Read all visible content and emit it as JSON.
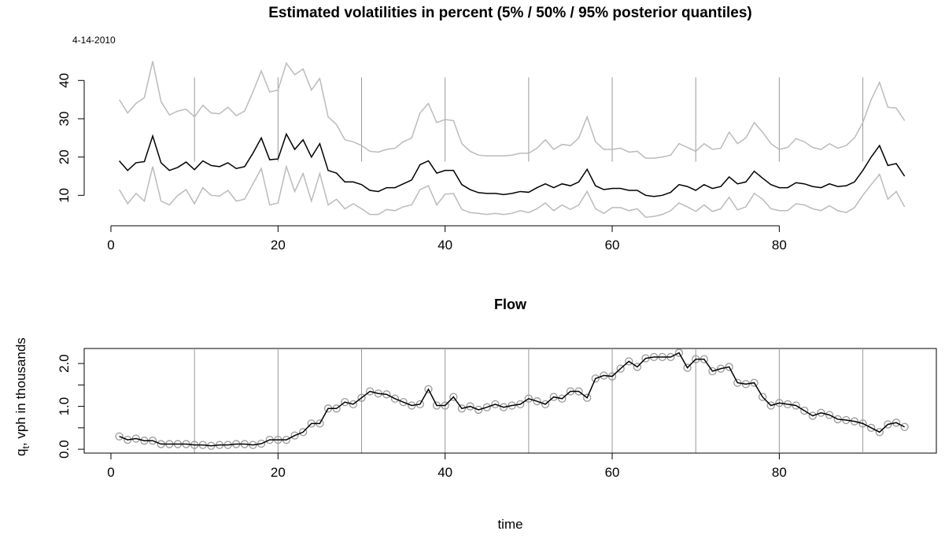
{
  "chart_data": [
    {
      "type": "line",
      "title": "Estimated volatilities in percent (5% / 50% / 95% posterior quantiles)",
      "annotation": "4-14-2010",
      "x": [
        1,
        2,
        3,
        4,
        5,
        6,
        7,
        8,
        9,
        10,
        11,
        12,
        13,
        14,
        15,
        16,
        17,
        18,
        19,
        20,
        21,
        22,
        23,
        24,
        25,
        26,
        27,
        28,
        29,
        30,
        31,
        32,
        33,
        34,
        35,
        36,
        37,
        38,
        39,
        40,
        41,
        42,
        43,
        44,
        45,
        46,
        47,
        48,
        49,
        50,
        51,
        52,
        53,
        54,
        55,
        56,
        57,
        58,
        59,
        60,
        61,
        62,
        63,
        64,
        65,
        66,
        67,
        68,
        69,
        70,
        71,
        72,
        73,
        74,
        75,
        76,
        77,
        78,
        79,
        80,
        81,
        82,
        83,
        84,
        85,
        86,
        87,
        88,
        89,
        90,
        91,
        92,
        93,
        94,
        95
      ],
      "series": [
        {
          "color": "#bbbbbb",
          "values": [
            11.5,
            7.8,
            10.5,
            8.5,
            17.5,
            8.5,
            7.5,
            10,
            11.5,
            7.8,
            12,
            10,
            9.8,
            11.3,
            8.5,
            9,
            13,
            17,
            7.5,
            8,
            17.5,
            11,
            15.7,
            8.5,
            15.7,
            7.5,
            9,
            6.5,
            7.8,
            6.5,
            5,
            5,
            6.3,
            6,
            7,
            7.5,
            11.5,
            12.5,
            7.5,
            10.3,
            10.5,
            6.3,
            5.5,
            5.3,
            5,
            5.3,
            5,
            5.3,
            6,
            5.5,
            6.5,
            8,
            6,
            7.5,
            6.3,
            7.5,
            11,
            6.5,
            5.3,
            6.8,
            6.8,
            6,
            6.5,
            4.3,
            4.5,
            5,
            6,
            8,
            7,
            5.8,
            7.5,
            5.8,
            6.5,
            9.5,
            6.2,
            7,
            10.5,
            9,
            6.5,
            6,
            6,
            7.8,
            7.5,
            6.5,
            6,
            7.3,
            6,
            5.5,
            6.8,
            10,
            12.8,
            15.5,
            9,
            11,
            7
          ]
        },
        {
          "color": "#000000",
          "values": [
            19,
            16.5,
            18.5,
            18.8,
            25.5,
            18.5,
            16.5,
            17.3,
            18.7,
            16.7,
            19,
            17.8,
            17.5,
            18.5,
            17,
            17.5,
            21,
            25,
            19.3,
            19.5,
            26,
            22,
            24.5,
            20,
            23.5,
            16.5,
            15.8,
            13.5,
            13.5,
            12.8,
            11.3,
            11,
            12,
            12,
            13,
            14,
            18,
            19,
            15.8,
            16.5,
            16.5,
            12.8,
            11.5,
            10.7,
            10.5,
            10.5,
            10.2,
            10.5,
            11,
            10.8,
            12,
            13,
            12,
            13,
            12.5,
            13.5,
            16.8,
            12.5,
            11.5,
            11.8,
            11.8,
            11.3,
            11.3,
            10,
            9.7,
            10,
            10.8,
            12.8,
            12.3,
            11.3,
            12.8,
            11.8,
            12.3,
            14.8,
            13,
            13.5,
            16.3,
            14.5,
            12.8,
            12,
            12,
            13.3,
            13,
            12.3,
            12,
            13,
            12.3,
            12.5,
            13.5,
            16.5,
            20,
            23,
            17.8,
            18.3,
            15
          ]
        },
        {
          "color": "#bbbbbb",
          "values": [
            35,
            31.5,
            34,
            35.5,
            45,
            34.5,
            31,
            32,
            32.5,
            30.5,
            33.5,
            31.5,
            31.3,
            33,
            30.8,
            32,
            37,
            42.5,
            37,
            37.5,
            44.5,
            41.5,
            43,
            37.5,
            40.5,
            30.5,
            28.5,
            24.5,
            24,
            23,
            21.5,
            21.3,
            22,
            22.3,
            24,
            25,
            31.5,
            34,
            29,
            29.8,
            29.5,
            23.5,
            21.5,
            20.5,
            20.3,
            20.3,
            20.3,
            20.5,
            21,
            21,
            22.3,
            24.5,
            22,
            23.3,
            23,
            25,
            30.5,
            24,
            22,
            22,
            22.3,
            21.3,
            21.5,
            19.7,
            19.7,
            20,
            20.5,
            23.5,
            22.5,
            21.5,
            23.5,
            22,
            22.3,
            26.5,
            23.5,
            25,
            29,
            26.5,
            23.5,
            22,
            22.5,
            24.8,
            24,
            22.5,
            22,
            23.5,
            22.3,
            23,
            25,
            29,
            35,
            39.5,
            33,
            32.8,
            29.5
          ]
        }
      ],
      "xlim": [
        -3.2,
        98.8
      ],
      "xticks": [
        0,
        20,
        40,
        60,
        80
      ],
      "ylim": [
        2.67,
        46.63
      ],
      "yticks": [
        10,
        20,
        30,
        40
      ],
      "vlines": [
        10,
        20,
        30,
        40,
        50,
        60,
        70,
        80,
        90
      ],
      "vline_color": "#999999",
      "vline_span": [
        18.8,
        40.8
      ],
      "box": false
    },
    {
      "type": "line",
      "title": "Flow",
      "xlabel": "time",
      "ylabel": [
        "q",
        "t",
        ", vph in thousands"
      ],
      "x": [
        1,
        2,
        3,
        4,
        5,
        6,
        7,
        8,
        9,
        10,
        11,
        12,
        13,
        14,
        15,
        16,
        17,
        18,
        19,
        20,
        21,
        22,
        23,
        24,
        25,
        26,
        27,
        28,
        29,
        30,
        31,
        32,
        33,
        34,
        35,
        36,
        37,
        38,
        39,
        40,
        41,
        42,
        43,
        44,
        45,
        46,
        47,
        48,
        49,
        50,
        51,
        52,
        53,
        54,
        55,
        56,
        57,
        58,
        59,
        60,
        61,
        62,
        63,
        64,
        65,
        66,
        67,
        68,
        69,
        70,
        71,
        72,
        73,
        74,
        75,
        76,
        77,
        78,
        79,
        80,
        81,
        82,
        83,
        84,
        85,
        86,
        87,
        88,
        89,
        90,
        91,
        92,
        93,
        94,
        95
      ],
      "series": [
        {
          "color": "#000000",
          "marker_color": "#999999",
          "marker": "circle",
          "values": [
            0.3,
            0.22,
            0.25,
            0.2,
            0.2,
            0.12,
            0.12,
            0.12,
            0.12,
            0.1,
            0.1,
            0.08,
            0.1,
            0.1,
            0.12,
            0.12,
            0.1,
            0.13,
            0.22,
            0.22,
            0.22,
            0.32,
            0.4,
            0.6,
            0.6,
            0.95,
            0.95,
            1.1,
            1.05,
            1.2,
            1.35,
            1.3,
            1.28,
            1.18,
            1.1,
            1.02,
            1.05,
            1.4,
            1.02,
            1.02,
            1.22,
            0.95,
            1.0,
            0.92,
            0.98,
            1.05,
            0.98,
            1.02,
            1.05,
            1.18,
            1.12,
            1.05,
            1.22,
            1.18,
            1.35,
            1.35,
            1.2,
            1.65,
            1.72,
            1.7,
            1.88,
            2.05,
            1.92,
            2.12,
            2.15,
            2.15,
            2.15,
            2.25,
            1.9,
            2.1,
            2.1,
            1.82,
            1.88,
            1.92,
            1.55,
            1.52,
            1.55,
            1.22,
            1.02,
            1.08,
            1.05,
            1.02,
            0.9,
            0.78,
            0.85,
            0.8,
            0.7,
            0.68,
            0.65,
            0.6,
            0.5,
            0.4,
            0.58,
            0.62,
            0.52
          ]
        }
      ],
      "xlim": [
        -3.2,
        98.8
      ],
      "xticks": [
        0,
        20,
        40,
        60,
        80
      ],
      "ylim": [
        -0.09,
        2.35
      ],
      "yticks": [
        {
          "value": 0,
          "label": "0.0"
        },
        {
          "value": 1,
          "label": "1.0"
        },
        {
          "value": 2,
          "label": "2.0"
        }
      ],
      "yminorticks": [
        0.5,
        1.5
      ],
      "vlines": [
        10,
        20,
        30,
        40,
        50,
        60,
        70,
        80,
        90
      ],
      "vline_color": "#999999",
      "box": true
    }
  ]
}
